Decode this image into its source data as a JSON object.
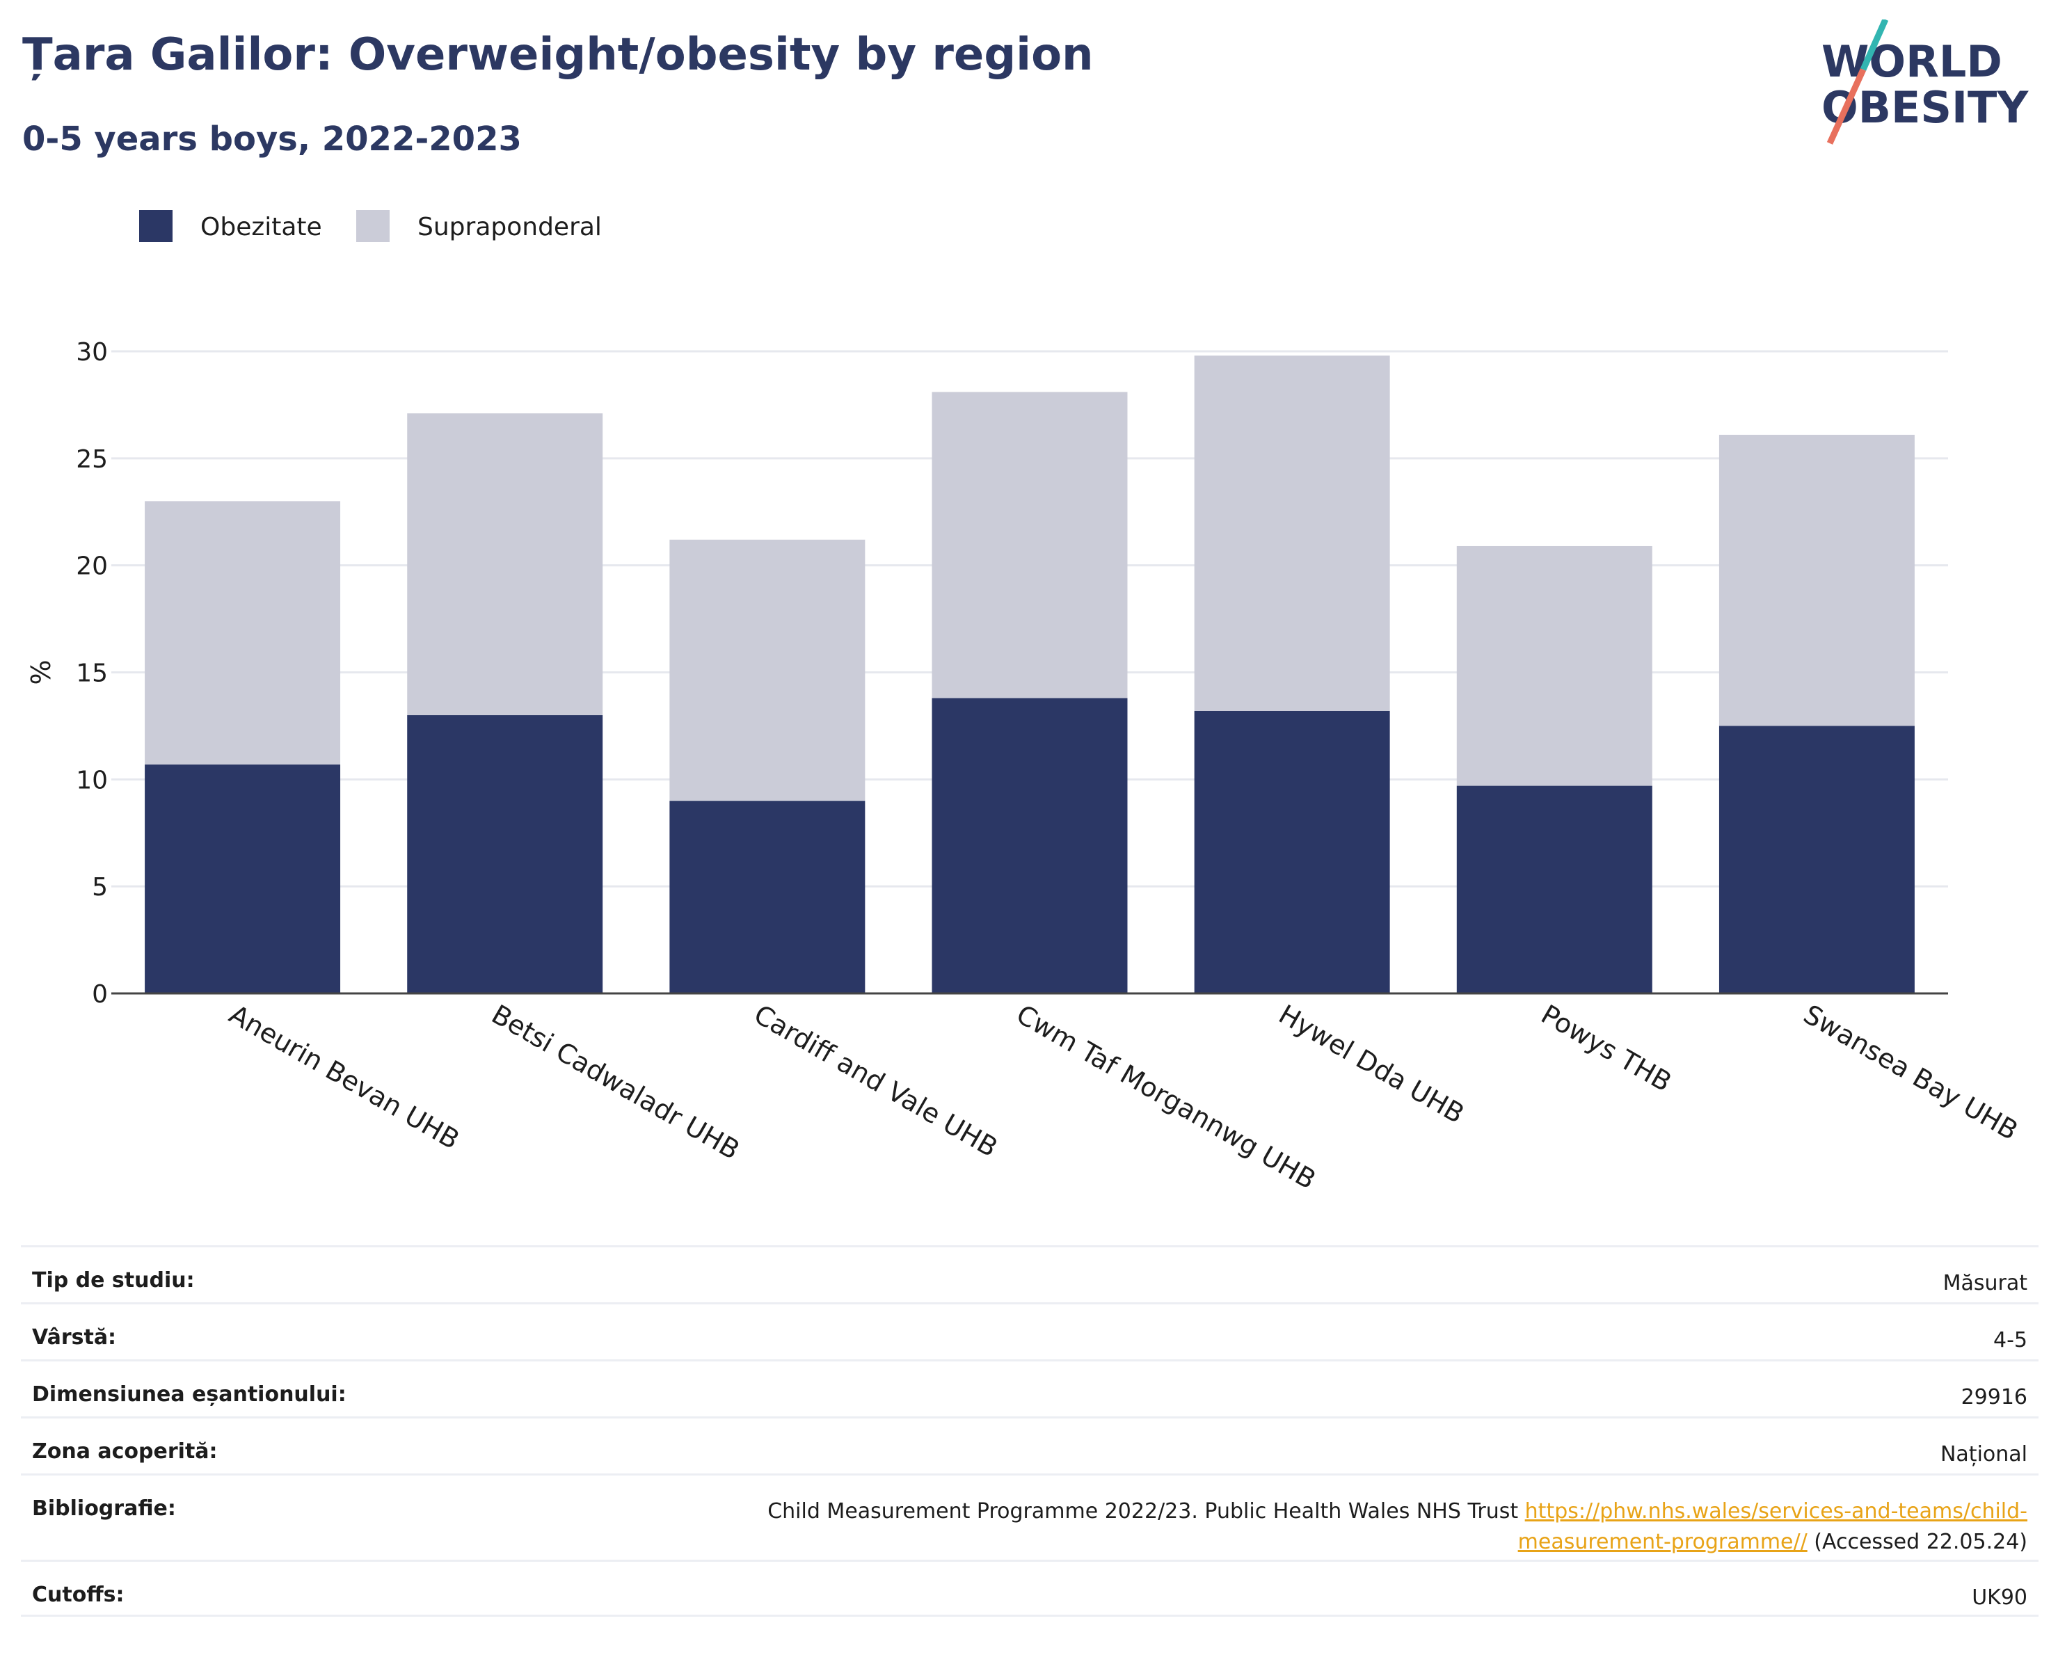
{
  "header": {
    "title": "Țara Galilor: Overweight/obesity by region",
    "subtitle": "0-5 years boys, 2022-2023",
    "logo_line1": "WORLD",
    "logo_line2": "OBESITY"
  },
  "colors": {
    "obesity": "#2b3765",
    "overweight": "#cbccd8",
    "title": "#2c3862",
    "logo_teal": "#32b5b1",
    "logo_coral": "#e8705d",
    "link": "#e8a317"
  },
  "chart_data": {
    "type": "bar",
    "stacked": true,
    "categories": [
      "Aneurin Bevan UHB",
      "Betsi Cadwaladr UHB",
      "Cardiff and Vale UHB",
      "Cwm Taf Morgannwg UHB",
      "Hywel Dda UHB",
      "Powys THB",
      "Swansea Bay UHB"
    ],
    "series": [
      {
        "name": "Obezitate",
        "values": [
          10.7,
          13.0,
          9.0,
          13.8,
          13.2,
          9.7,
          12.5
        ]
      },
      {
        "name": "Supraponderal",
        "values": [
          12.3,
          14.1,
          12.2,
          14.3,
          16.6,
          11.2,
          13.6
        ]
      }
    ],
    "ylabel": "%",
    "ylim": [
      0,
      30
    ],
    "yticks": [
      0,
      5,
      10,
      15,
      20,
      25,
      30
    ],
    "grid": true,
    "legend_position": "top-left"
  },
  "info": {
    "rows": [
      {
        "label": "Tip de studiu:",
        "value": "Măsurat"
      },
      {
        "label": "Vârstă:",
        "value": "4-5"
      },
      {
        "label": "Dimensiunea eșantionului:",
        "value": "29916"
      },
      {
        "label": "Zona acoperită:",
        "value": "Național"
      },
      {
        "label": "Bibliografie:",
        "value_prefix": "Child Measurement Programme 2022/23. Public Health Wales NHS Trust ",
        "link": "https://phw.nhs.wales/services-and-teams/child-measurement-programme//",
        "value_suffix": " (Accessed 22.05.24)"
      },
      {
        "label": "Cutoffs:",
        "value": "UK90"
      }
    ]
  }
}
